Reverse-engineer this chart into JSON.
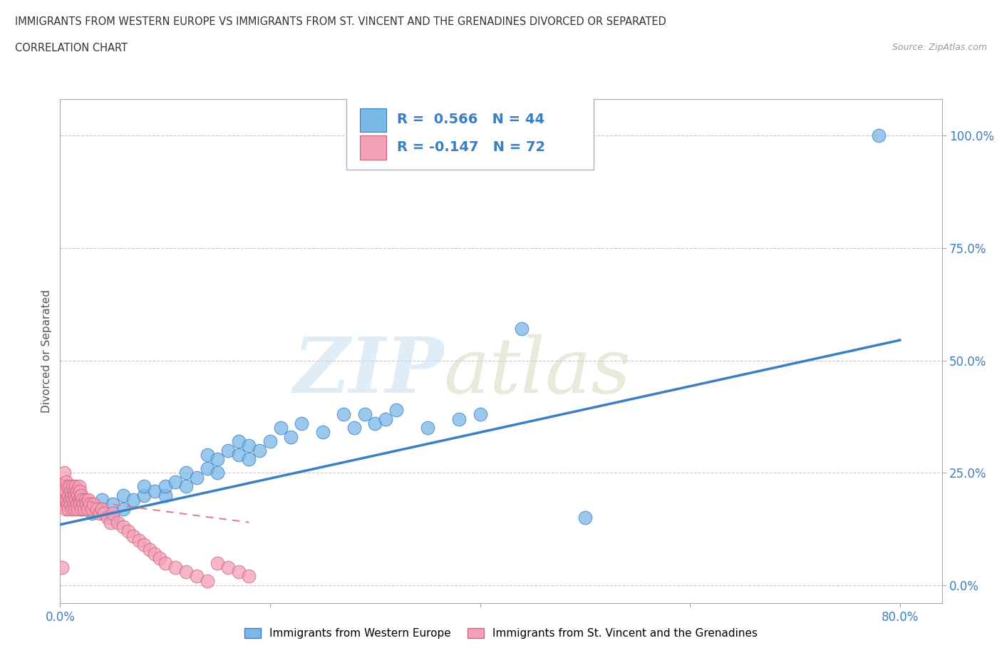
{
  "title_line1": "IMMIGRANTS FROM WESTERN EUROPE VS IMMIGRANTS FROM ST. VINCENT AND THE GRENADINES DIVORCED OR SEPARATED",
  "title_line2": "CORRELATION CHART",
  "source_text": "Source: ZipAtlas.com",
  "ylabel": "Divorced or Separated",
  "x_tick_labels": [
    "0.0%",
    "80.0%"
  ],
  "y_tick_labels": [
    "0.0%",
    "25.0%",
    "50.0%",
    "75.0%",
    "100.0%"
  ],
  "y_tick_values": [
    0.0,
    0.25,
    0.5,
    0.75,
    1.0
  ],
  "legend_label1": "Immigrants from Western Europe",
  "legend_label2": "Immigrants from St. Vincent and the Grenadines",
  "R1": "0.566",
  "N1": "44",
  "R2": "-0.147",
  "N2": "72",
  "color1": "#7ab8e8",
  "color2": "#f4a0b8",
  "line1_color": "#3a7fc1",
  "line2_color": "#e8a0b8",
  "background_color": "#ffffff",
  "grid_color": "#c8c8d0",
  "blue_scatter_x": [
    0.02,
    0.03,
    0.04,
    0.05,
    0.05,
    0.06,
    0.06,
    0.07,
    0.08,
    0.08,
    0.09,
    0.1,
    0.1,
    0.11,
    0.12,
    0.12,
    0.13,
    0.14,
    0.14,
    0.15,
    0.15,
    0.16,
    0.17,
    0.17,
    0.18,
    0.18,
    0.19,
    0.2,
    0.21,
    0.22,
    0.23,
    0.25,
    0.27,
    0.28,
    0.29,
    0.3,
    0.31,
    0.32,
    0.35,
    0.38,
    0.4,
    0.44,
    0.5,
    0.78
  ],
  "blue_scatter_y": [
    0.17,
    0.16,
    0.19,
    0.15,
    0.18,
    0.17,
    0.2,
    0.19,
    0.2,
    0.22,
    0.21,
    0.2,
    0.22,
    0.23,
    0.22,
    0.25,
    0.24,
    0.26,
    0.29,
    0.25,
    0.28,
    0.3,
    0.29,
    0.32,
    0.28,
    0.31,
    0.3,
    0.32,
    0.35,
    0.33,
    0.36,
    0.34,
    0.38,
    0.35,
    0.38,
    0.36,
    0.37,
    0.39,
    0.35,
    0.37,
    0.38,
    0.57,
    0.15,
    1.0
  ],
  "pink_scatter_x": [
    0.002,
    0.003,
    0.004,
    0.004,
    0.005,
    0.005,
    0.006,
    0.006,
    0.007,
    0.007,
    0.008,
    0.008,
    0.009,
    0.009,
    0.01,
    0.01,
    0.011,
    0.011,
    0.012,
    0.012,
    0.013,
    0.013,
    0.014,
    0.014,
    0.015,
    0.015,
    0.016,
    0.016,
    0.017,
    0.017,
    0.018,
    0.018,
    0.019,
    0.019,
    0.02,
    0.02,
    0.021,
    0.022,
    0.023,
    0.024,
    0.025,
    0.026,
    0.027,
    0.028,
    0.03,
    0.032,
    0.035,
    0.038,
    0.04,
    0.042,
    0.045,
    0.048,
    0.05,
    0.055,
    0.06,
    0.065,
    0.07,
    0.075,
    0.08,
    0.085,
    0.09,
    0.095,
    0.1,
    0.11,
    0.12,
    0.13,
    0.14,
    0.15,
    0.16,
    0.17,
    0.18,
    0.002
  ],
  "pink_scatter_y": [
    0.18,
    0.22,
    0.2,
    0.25,
    0.17,
    0.21,
    0.19,
    0.23,
    0.18,
    0.22,
    0.17,
    0.2,
    0.19,
    0.22,
    0.18,
    0.21,
    0.17,
    0.2,
    0.19,
    0.22,
    0.18,
    0.21,
    0.17,
    0.2,
    0.19,
    0.22,
    0.18,
    0.21,
    0.17,
    0.2,
    0.19,
    0.22,
    0.18,
    0.21,
    0.17,
    0.2,
    0.19,
    0.18,
    0.17,
    0.19,
    0.18,
    0.17,
    0.19,
    0.18,
    0.17,
    0.18,
    0.17,
    0.16,
    0.17,
    0.16,
    0.15,
    0.14,
    0.16,
    0.14,
    0.13,
    0.12,
    0.11,
    0.1,
    0.09,
    0.08,
    0.07,
    0.06,
    0.05,
    0.04,
    0.03,
    0.02,
    0.01,
    0.05,
    0.04,
    0.03,
    0.02,
    0.04
  ],
  "blue_trend_x0": 0.0,
  "blue_trend_y0": 0.135,
  "blue_trend_x1": 0.8,
  "blue_trend_y1": 0.545,
  "pink_trend_x0": 0.0,
  "pink_trend_y0": 0.195,
  "pink_trend_x1": 0.18,
  "pink_trend_y1": 0.14,
  "xlim": [
    0.0,
    0.84
  ],
  "ylim": [
    -0.04,
    1.08
  ],
  "figsize": [
    14.06,
    9.3
  ],
  "dpi": 100
}
